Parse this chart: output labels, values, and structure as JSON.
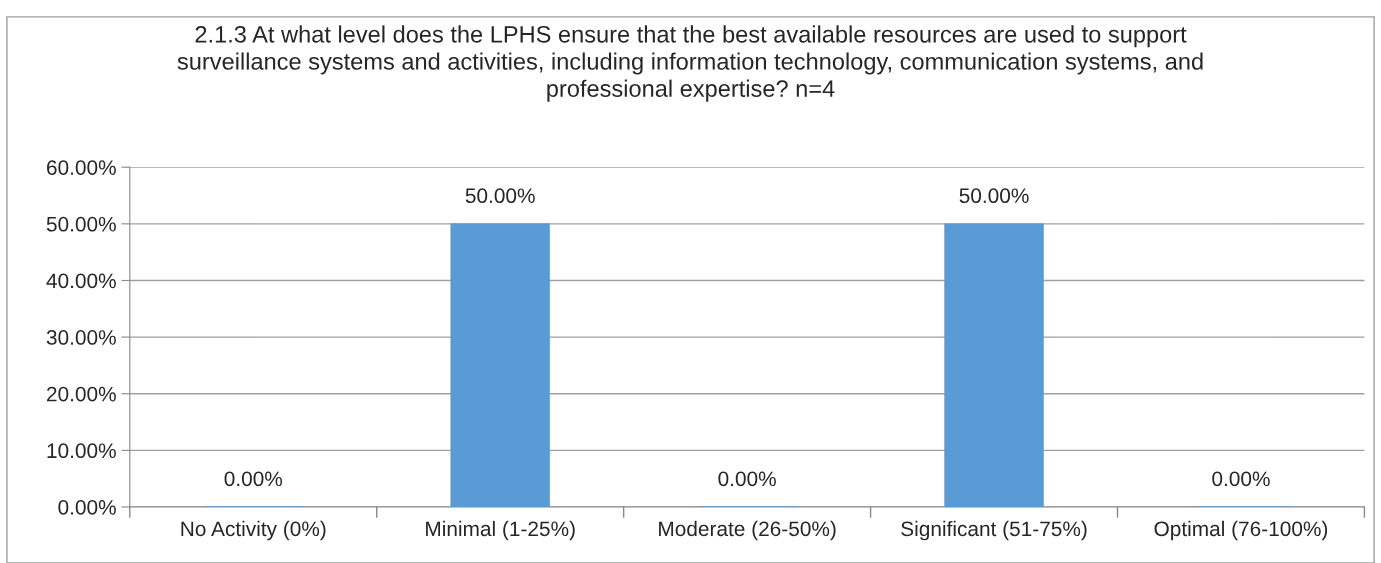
{
  "chart_data": {
    "type": "bar",
    "title": "2.1.3 At what level does the LPHS ensure that the best available resources are used to support surveillance systems and activities, including information technology, communication systems, and professional expertise? n=4",
    "categories": [
      "No Activity (0%)",
      "Minimal (1-25%)",
      "Moderate (26-50%)",
      "Significant (51-75%)",
      "Optimal (76-100%)"
    ],
    "values": [
      0,
      50,
      0,
      50,
      0
    ],
    "value_labels": [
      "0.00%",
      "50.00%",
      "0.00%",
      "50.00%",
      "0.00%"
    ],
    "color": "#5b9bd5",
    "ylim": [
      0,
      60
    ],
    "yticks": [
      {
        "value": 0,
        "label": "0.00%"
      },
      {
        "value": 10,
        "label": "10.00%"
      },
      {
        "value": 20,
        "label": "20.00%"
      },
      {
        "value": 30,
        "label": "30.00%"
      },
      {
        "value": 40,
        "label": "40.00%"
      },
      {
        "value": 50,
        "label": "50.00%"
      },
      {
        "value": 60,
        "label": "60.00%"
      }
    ],
    "grid": "y",
    "legend": false
  }
}
